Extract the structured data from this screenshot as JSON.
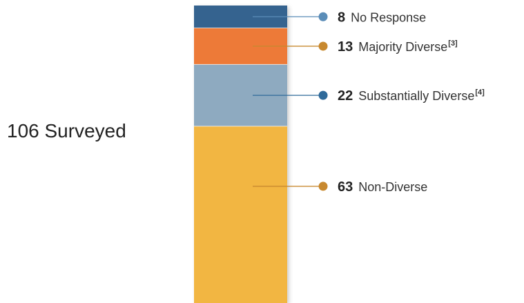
{
  "chart_data": {
    "type": "bar",
    "orientation": "stacked-vertical",
    "total_label": "106 Surveyed",
    "total": 106,
    "segments": [
      {
        "name": "No Response",
        "value": 8,
        "note": "",
        "color": "#36648f",
        "dot_color": "#5b8db8"
      },
      {
        "name": "Majority Diverse",
        "value": 13,
        "note": "[3]",
        "color": "#ed7a38",
        "dot_color": "#c8892f"
      },
      {
        "name": "Substantially Diverse",
        "value": 22,
        "note": "[4]",
        "color": "#8eaac0",
        "dot_color": "#2f6a9a"
      },
      {
        "name": "Non-Diverse",
        "value": 63,
        "note": "",
        "color": "#f2b642",
        "dot_color": "#c8892f"
      }
    ]
  }
}
